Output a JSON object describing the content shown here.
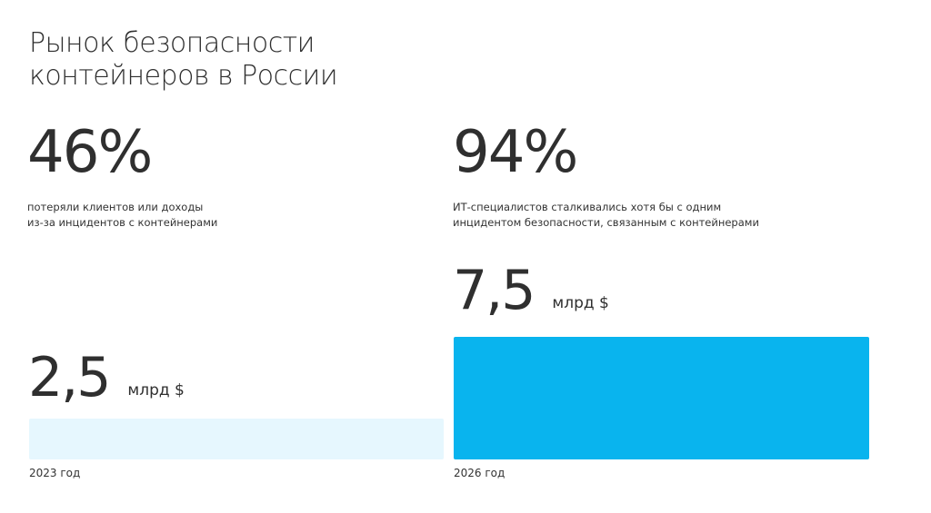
{
  "title": "Рынок безопасности\nконтейнеров в России",
  "stats": [
    {
      "value": "46%",
      "description": "потеряли клиентов или доходы\nиз-за инцидентов с контейнерами"
    },
    {
      "value": "94%",
      "description": "ИТ-специалистов сталкивались хотя бы с одним\nинцидентом безопасности, связанным с контейнерами"
    }
  ],
  "chart_data": {
    "type": "bar",
    "categories": [
      "2023 год",
      "2026 год"
    ],
    "values": [
      2.5,
      7.5
    ],
    "value_labels": [
      "2,5",
      "7,5"
    ],
    "unit": "млрд $",
    "colors": [
      "#e6f7fe",
      "#09b4ee"
    ]
  }
}
